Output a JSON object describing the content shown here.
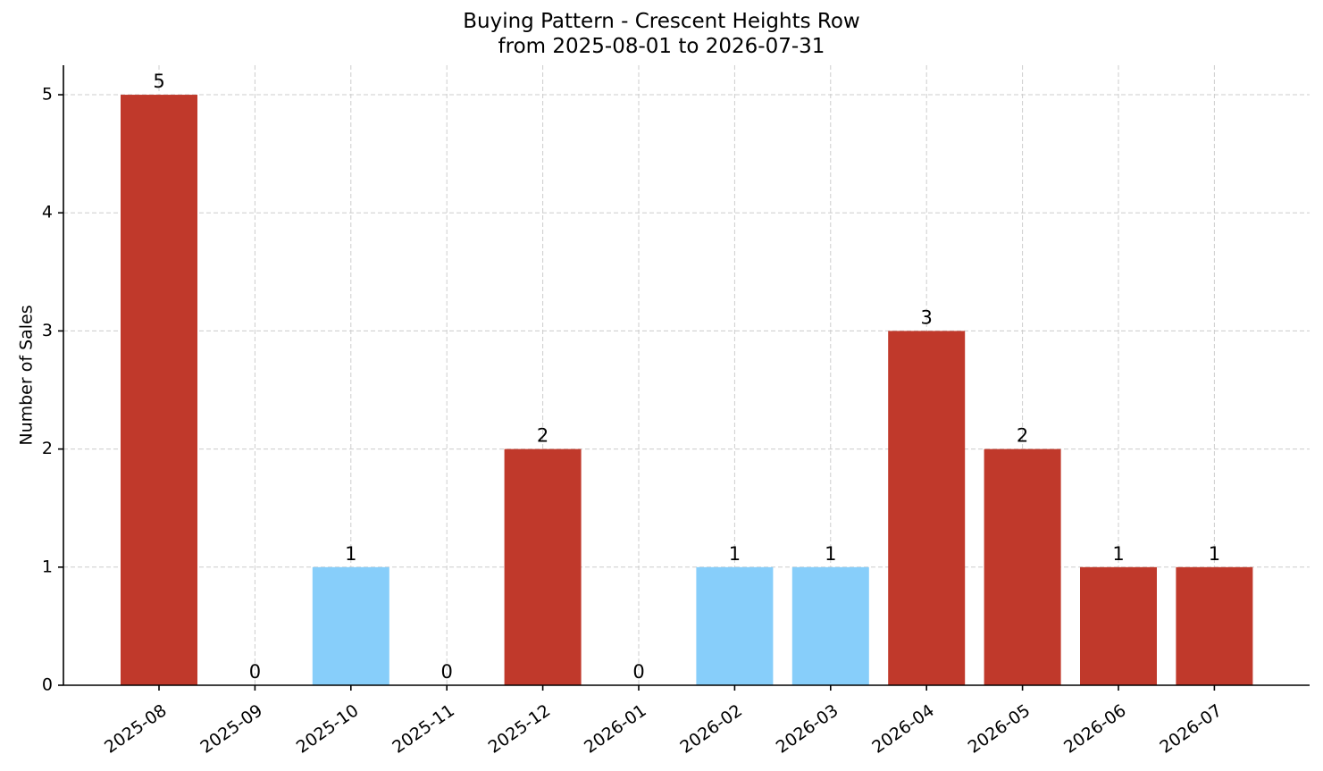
{
  "chart_data": {
    "type": "bar",
    "title": "Buying Pattern - Crescent Heights Row",
    "subtitle": "from 2025-08-01 to 2026-07-31",
    "xlabel": "",
    "ylabel": "Number of Sales",
    "categories": [
      "2025-08",
      "2025-09",
      "2025-10",
      "2025-11",
      "2025-12",
      "2026-01",
      "2026-02",
      "2026-03",
      "2026-04",
      "2026-05",
      "2026-06",
      "2026-07"
    ],
    "values": [
      5,
      0,
      1,
      0,
      2,
      0,
      1,
      1,
      3,
      2,
      1,
      1
    ],
    "bar_colors": [
      "#c0392b",
      "#c0392b",
      "#87cefa",
      "#c0392b",
      "#c0392b",
      "#c0392b",
      "#87cefa",
      "#87cefa",
      "#c0392b",
      "#c0392b",
      "#c0392b",
      "#c0392b"
    ],
    "ylim": [
      0,
      5.25
    ],
    "yticks": [
      0,
      1,
      2,
      3,
      4,
      5
    ],
    "grid": true,
    "data_labels": true
  }
}
